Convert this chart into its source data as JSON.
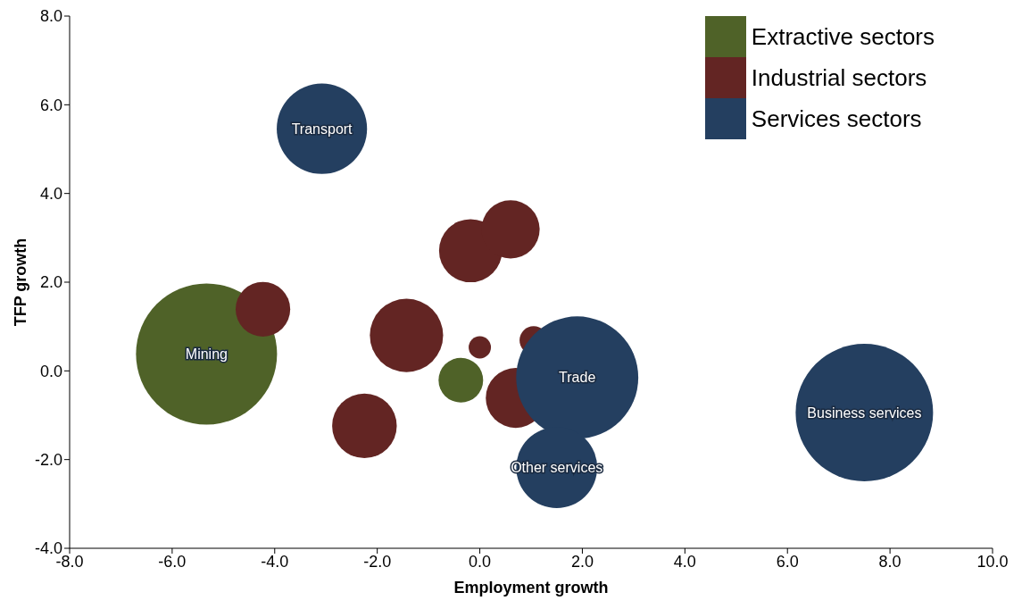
{
  "chart_data": {
    "type": "bubble",
    "xlabel": "Employment growth",
    "ylabel": "TFP growth",
    "xlim": [
      -8,
      10
    ],
    "ylim": [
      -4,
      8
    ],
    "xticks": [
      {
        "value": -8,
        "label": "-8.0"
      },
      {
        "value": -6,
        "label": "-6.0"
      },
      {
        "value": -4,
        "label": "-4.0"
      },
      {
        "value": -2,
        "label": "-2.0"
      },
      {
        "value": 0,
        "label": "0.0"
      },
      {
        "value": 2,
        "label": "2.0"
      },
      {
        "value": 4,
        "label": "4.0"
      },
      {
        "value": 6,
        "label": "6.0"
      },
      {
        "value": 8,
        "label": "8.0"
      },
      {
        "value": 10,
        "label": "10.0"
      }
    ],
    "yticks": [
      {
        "value": -4,
        "label": "-4.0"
      },
      {
        "value": -2,
        "label": "-2.0"
      },
      {
        "value": 0,
        "label": "0.0"
      },
      {
        "value": 2,
        "label": "2.0"
      },
      {
        "value": 4,
        "label": "4.0"
      },
      {
        "value": 6,
        "label": "6.0"
      },
      {
        "value": 8,
        "label": "8.0"
      }
    ],
    "grid": false,
    "legend": "top right",
    "series": [
      {
        "name": "Extractive sectors",
        "color": "#4f6228",
        "x": [
          -5.33,
          -0.37
        ],
        "values": [
          0.38,
          -0.21
        ],
        "sizes": [
          1,
          0.1
        ]
      },
      {
        "name": "Industrial sectors",
        "color": "#632523",
        "x": [
          -4.23,
          -1.43,
          -2.25,
          -0.18,
          0.6,
          0,
          1.05,
          0.7
        ],
        "values": [
          1.39,
          0.8,
          -1.24,
          2.71,
          3.19,
          0.53,
          0.69,
          -0.61
        ],
        "sizes": [
          0.15,
          0.27,
          0.21,
          0.2,
          0.17,
          0.025,
          0.04,
          0.18
        ]
      },
      {
        "name": "Services sectors",
        "color": "#243f60",
        "x": [
          -3.08,
          1.9,
          1.5,
          7.5
        ],
        "values": [
          5.46,
          -0.15,
          -2.18,
          -0.94
        ],
        "sizes": [
          0.41,
          0.75,
          0.33,
          0.95
        ]
      }
    ],
    "annotations": [
      {
        "text": "Transport",
        "x": -3.08,
        "y": 5.46
      },
      {
        "text": "Mining",
        "x": -5.33,
        "y": 0.38
      },
      {
        "text": "Trade",
        "x": 1.9,
        "y": -0.15
      },
      {
        "text": "Other services",
        "x": 1.5,
        "y": -2.18
      },
      {
        "text": "Business services",
        "x": 7.5,
        "y": -0.94
      }
    ]
  }
}
